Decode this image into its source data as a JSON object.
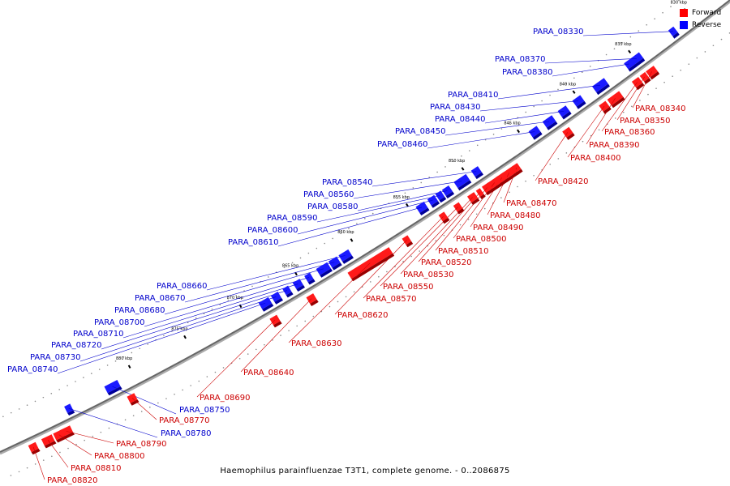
{
  "caption": "Haemophilus parainfluenzae T3T1, complete genome. - 0..2086875",
  "legend": {
    "forward": {
      "label": "Forward",
      "color": "#ff0000"
    },
    "reverse": {
      "label": "Reverse",
      "color": "#0000ff"
    }
  },
  "colors": {
    "forward_text": "#cc0000",
    "reverse_text": "#0000cc",
    "backbone": "#888888"
  },
  "scale": {
    "unit": "kbp",
    "start_kbp": 828,
    "end_kbp": 888
  },
  "ticks": [
    {
      "kbp": 830,
      "label": "830 kbp"
    },
    {
      "kbp": 835,
      "label": "835 kbp"
    },
    {
      "kbp": 840,
      "label": "840 kbp"
    },
    {
      "kbp": 845,
      "label": "845 kbp"
    },
    {
      "kbp": 850,
      "label": "850 kbp"
    },
    {
      "kbp": 855,
      "label": "855 kbp"
    },
    {
      "kbp": 860,
      "label": "860 kbp"
    },
    {
      "kbp": 865,
      "label": "865 kbp"
    },
    {
      "kbp": 870,
      "label": "870 kbp"
    },
    {
      "kbp": 875,
      "label": "875 kbp"
    },
    {
      "kbp": 880,
      "label": "880 kbp"
    }
  ],
  "reverse_genes": [
    "PARA_08330",
    "PARA_08370",
    "PARA_08380",
    "PARA_08410",
    "PARA_08430",
    "PARA_08440",
    "PARA_08450",
    "PARA_08460",
    "PARA_08540",
    "PARA_08560",
    "PARA_08580",
    "PARA_08590",
    "PARA_08600",
    "PARA_08610",
    "PARA_08660",
    "PARA_08670",
    "PARA_08680",
    "PARA_08700",
    "PARA_08710",
    "PARA_08720",
    "PARA_08730",
    "PARA_08740",
    "PARA_08750",
    "PARA_08780"
  ],
  "forward_genes": [
    "PARA_08340",
    "PARA_08350",
    "PARA_08360",
    "PARA_08390",
    "PARA_08400",
    "PARA_08420",
    "PARA_08470",
    "PARA_08480",
    "PARA_08490",
    "PARA_08500",
    "PARA_08510",
    "PARA_08520",
    "PARA_08530",
    "PARA_08550",
    "PARA_08570",
    "PARA_08620",
    "PARA_08630",
    "PARA_08640",
    "PARA_08690",
    "PARA_08770",
    "PARA_08790",
    "PARA_08800",
    "PARA_08810",
    "PARA_08820"
  ]
}
